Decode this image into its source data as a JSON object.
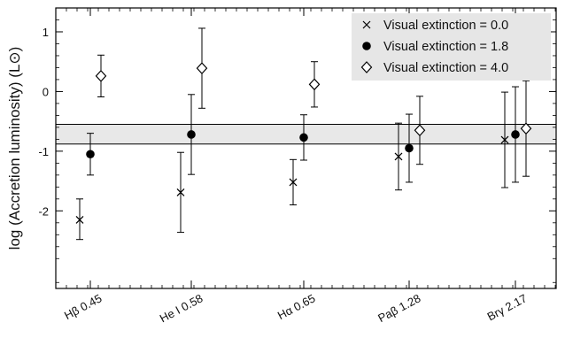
{
  "chart_data": {
    "type": "scatter",
    "title": "",
    "xlabel": "",
    "ylabel": "log (Accretion luminosity) (L⊙)",
    "categories": [
      "Hβ 0.45",
      "He I 0.58",
      "Hα 0.65",
      "Paβ 1.28",
      "Brγ 2.17"
    ],
    "ylim": [
      -3.3,
      1.4
    ],
    "yticks": [
      -2,
      -1,
      0,
      1
    ],
    "ytick_labels": [
      "-2",
      "-1",
      "0",
      "1"
    ],
    "grid": false,
    "legend_position": "top-right",
    "band": {
      "low": -0.88,
      "high": -0.55,
      "color": "#e8e8e8"
    },
    "series": [
      {
        "name": "Visual extinction = 0.0",
        "marker": "x",
        "values": [
          -2.15,
          -1.69,
          -1.52,
          -1.09,
          -0.81
        ],
        "err_low": [
          0.33,
          0.67,
          0.38,
          0.56,
          0.8
        ],
        "err_high": [
          0.35,
          0.67,
          0.38,
          0.56,
          0.8
        ]
      },
      {
        "name": "Visual extinction = 1.8",
        "marker": "circle",
        "values": [
          -1.05,
          -0.72,
          -0.77,
          -0.95,
          -0.72
        ],
        "err_low": [
          0.35,
          0.67,
          0.38,
          0.57,
          0.8
        ],
        "err_high": [
          0.35,
          0.67,
          0.38,
          0.57,
          0.8
        ]
      },
      {
        "name": "Visual extinction = 4.0",
        "marker": "diamond",
        "values": [
          0.26,
          0.39,
          0.12,
          -0.65,
          -0.62
        ],
        "err_low": [
          0.35,
          0.67,
          0.38,
          0.57,
          0.8
        ],
        "err_high": [
          0.35,
          0.67,
          0.38,
          0.57,
          0.8
        ]
      }
    ]
  }
}
